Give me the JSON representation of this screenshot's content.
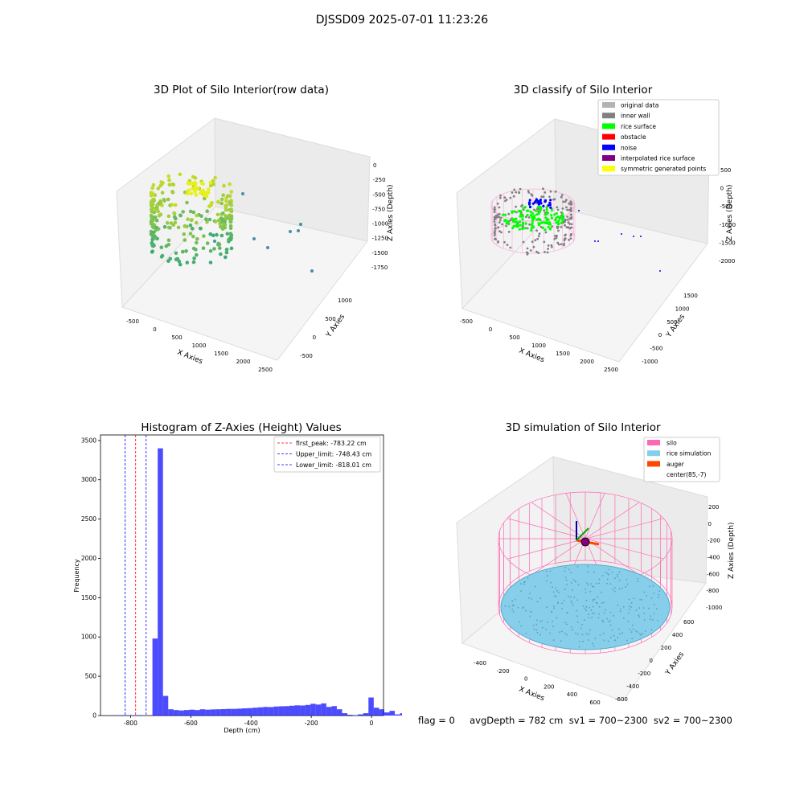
{
  "suptitle": "DJSSD09 2025-07-01 11:23:26",
  "footer": "flag = 0     avgDepth = 782 cm  sv1 = 700~2300  sv2 = 700~2300",
  "colors": {
    "original": "#b3b3b3",
    "inner_wall": "#808080",
    "rice_surface": "#00ff00",
    "obstacle": "#ff0000",
    "noise": "#0000ff",
    "interpolated": "#800080",
    "symmetric": "#ffff00",
    "silo": "#ff69b4",
    "rice_sim": "#87ceeb",
    "auger": "#ff4500",
    "hist": "#0000ff",
    "peak": "#ff0000",
    "limit": "#0000ff"
  },
  "chart_data": [
    {
      "type": "scatter",
      "title": "3D Plot of Silo Interior(row data)",
      "xlabel": "X Axies",
      "ylabel": "Y Axies",
      "zlabel": "Z Axies (Depth)",
      "x_ticks": [
        "-500",
        "0",
        "500",
        "1000",
        "1500",
        "2000",
        "2500"
      ],
      "y_ticks": [
        "-500",
        "0",
        "500",
        "1000"
      ],
      "z_ticks": [
        "0",
        "-250",
        "-500",
        "-750",
        "-1000",
        "-1250",
        "-1500",
        "-1750"
      ],
      "xlim": [
        -700,
        2600
      ],
      "ylim": [
        -700,
        1300
      ],
      "zlim": [
        -1900,
        100
      ]
    },
    {
      "type": "scatter",
      "title": "3D classify of Silo Interior",
      "xlabel": "X Axies",
      "ylabel": "Y Axies",
      "zlabel": "Z Axies (Depth)",
      "x_ticks": [
        "-500",
        "0",
        "500",
        "1000",
        "1500",
        "2000",
        "2500"
      ],
      "y_ticks": [
        "-1000",
        "-500",
        "0",
        "500",
        "1000",
        "1500"
      ],
      "z_ticks": [
        "500",
        "0",
        "-500",
        "-1000",
        "-1500",
        "-2000"
      ],
      "xlim": [
        -700,
        2600
      ],
      "ylim": [
        -1100,
        1700
      ],
      "zlim": [
        -2200,
        600
      ],
      "legend": [
        "original data",
        "inner wall",
        "rice surface",
        "obstacle",
        "noise",
        "interpolated rice surface",
        "symmetric generated points"
      ],
      "legend_loc": "top-right"
    },
    {
      "type": "bar",
      "title": "Histogram of Z-Axies (Height) Values",
      "xlabel": "Depth (cm)",
      "ylabel": "Frequency",
      "xlim": [
        -900,
        40
      ],
      "ylim": [
        0,
        3570
      ],
      "x_ticks": [
        -800,
        -600,
        -400,
        -200,
        0
      ],
      "y_ticks": [
        0,
        500,
        1000,
        1500,
        2000,
        2500,
        3000,
        3500
      ],
      "bin_start": -850,
      "bin_width": 17.5,
      "values": [
        5,
        5,
        5,
        5,
        5,
        0,
        0,
        980,
        3400,
        250,
        80,
        70,
        65,
        70,
        75,
        70,
        80,
        75,
        78,
        80,
        82,
        85,
        85,
        88,
        92,
        95,
        100,
        105,
        110,
        108,
        115,
        118,
        120,
        125,
        130,
        128,
        135,
        150,
        140,
        155,
        110,
        120,
        80,
        30,
        10,
        5,
        15,
        30,
        230,
        100,
        80,
        40,
        60,
        15,
        30
      ],
      "vlines": [
        {
          "x": -783.22,
          "kind": "peak",
          "label": "first_peak: -783.22 cm"
        },
        {
          "x": -748.43,
          "kind": "limit",
          "label": "Upper_limit: -748.43 cm"
        },
        {
          "x": -818.01,
          "kind": "limit",
          "label": "Lower_limit: -818.01 cm"
        }
      ],
      "legend_loc": "top-right"
    },
    {
      "type": "scatter",
      "title": "3D simulation of Silo Interior",
      "xlabel": "X Axies",
      "ylabel": "Y Axies",
      "zlabel": "Z Axies (Depth)",
      "x_ticks": [
        "-400",
        "-200",
        "0",
        "200",
        "400",
        "600"
      ],
      "y_ticks": [
        "-600",
        "-400",
        "-200",
        "0",
        "200",
        "400",
        "600"
      ],
      "z_ticks": [
        "200",
        "0",
        "-200",
        "-400",
        "-600",
        "-800",
        "-1000"
      ],
      "legend": [
        "silo",
        "rice simulation",
        "auger",
        "center(85,-7)"
      ],
      "legend_loc": "top-right"
    }
  ]
}
